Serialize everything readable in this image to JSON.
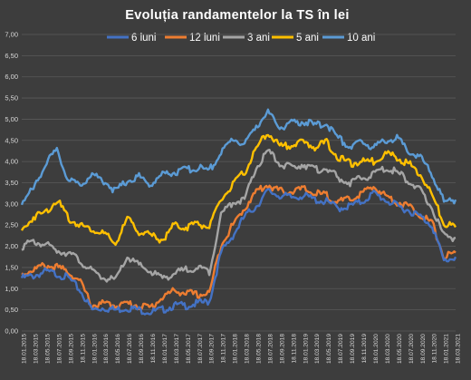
{
  "chart_data": {
    "type": "line",
    "title": "Evoluția  randamentelor  la TS în lei",
    "xlabel": "",
    "ylabel": "",
    "ylim": [
      0,
      7
    ],
    "yticks": [
      "0,00",
      "0,50",
      "1,00",
      "1,50",
      "2,00",
      "2,50",
      "3,00",
      "3,50",
      "4,00",
      "4,50",
      "5,00",
      "5,50",
      "6,00",
      "6,50",
      "7,00"
    ],
    "grid": "horizontal",
    "legend_position": "top",
    "categories": [
      "18.01.2015",
      "18.03.2015",
      "18.05.2015",
      "18.07.2015",
      "18.09.2015",
      "18.11.2015",
      "18.01.2016",
      "18.03.2016",
      "18.05.2016",
      "18.07.2016",
      "18.09.2016",
      "18.11.2016",
      "18.01.2017",
      "18.03.2017",
      "18.05.2017",
      "18.07.2017",
      "18.09.2017",
      "18.11.2017",
      "18.01.2018",
      "18.03.2018",
      "18.05.2018",
      "18.07.2018",
      "18.09.2018",
      "18.11.2018",
      "18.01.2019",
      "18.03.2019",
      "18.05.2019",
      "18.07.2019",
      "18.09.2019",
      "18.11.2019",
      "18.01.2020",
      "18.03.2020",
      "18.05.2020",
      "18.07.2020",
      "18.09.2020",
      "18.11.2020",
      "18.01.2021",
      "18.03.2021"
    ],
    "series": [
      {
        "name": "6 luni",
        "color": "#4472c4",
        "values": [
          1.25,
          1.3,
          1.4,
          1.35,
          1.25,
          0.95,
          0.5,
          0.55,
          0.5,
          0.55,
          0.5,
          0.45,
          0.5,
          0.6,
          0.6,
          0.65,
          0.7,
          1.85,
          2.25,
          2.7,
          2.95,
          3.3,
          3.2,
          3.15,
          3.2,
          3.1,
          3.05,
          2.9,
          2.95,
          3.05,
          3.25,
          3.1,
          2.95,
          2.85,
          2.7,
          2.5,
          1.65,
          1.75
        ]
      },
      {
        "name": "12 luni",
        "color": "#ed7d31",
        "values": [
          1.35,
          1.45,
          1.55,
          1.5,
          1.4,
          1.15,
          0.6,
          0.65,
          0.6,
          0.65,
          0.6,
          0.55,
          0.8,
          0.95,
          0.9,
          0.85,
          0.9,
          2.05,
          2.5,
          2.9,
          3.3,
          3.45,
          3.3,
          3.3,
          3.35,
          3.25,
          3.2,
          3.05,
          3.1,
          3.25,
          3.4,
          3.2,
          3.05,
          2.95,
          2.75,
          2.55,
          1.75,
          1.85
        ]
      },
      {
        "name": "3 ani",
        "color": "#a5a5a5",
        "values": [
          2.0,
          2.1,
          2.05,
          1.9,
          1.85,
          1.65,
          1.4,
          1.25,
          1.2,
          1.75,
          1.55,
          1.4,
          1.25,
          1.35,
          1.45,
          1.5,
          1.4,
          2.75,
          3.05,
          3.1,
          3.85,
          4.25,
          3.95,
          3.85,
          3.95,
          3.8,
          3.85,
          3.6,
          3.5,
          3.6,
          3.7,
          3.85,
          3.75,
          3.55,
          3.3,
          2.9,
          2.25,
          2.2
        ]
      },
      {
        "name": "5 ani",
        "color": "#ffc000",
        "values": [
          2.35,
          2.7,
          2.8,
          3.1,
          2.65,
          2.5,
          2.4,
          2.3,
          2.05,
          2.65,
          2.35,
          2.25,
          2.15,
          2.5,
          2.45,
          2.55,
          2.45,
          3.1,
          3.45,
          3.75,
          4.3,
          4.7,
          4.35,
          4.4,
          4.45,
          4.35,
          4.45,
          4.1,
          3.95,
          4.0,
          4.0,
          4.2,
          4.1,
          3.95,
          3.7,
          3.2,
          2.55,
          2.45
        ]
      },
      {
        "name": "10 ani",
        "color": "#5b9bd5",
        "values": [
          3.05,
          3.35,
          3.95,
          4.25,
          3.55,
          3.45,
          3.7,
          3.55,
          3.3,
          3.55,
          3.65,
          3.45,
          3.7,
          3.75,
          3.8,
          3.85,
          3.8,
          4.2,
          4.55,
          4.4,
          4.85,
          5.15,
          4.8,
          4.9,
          4.95,
          4.85,
          4.9,
          4.55,
          4.35,
          4.45,
          4.35,
          4.5,
          4.55,
          4.25,
          4.1,
          3.7,
          3.05,
          3.1
        ]
      }
    ]
  }
}
